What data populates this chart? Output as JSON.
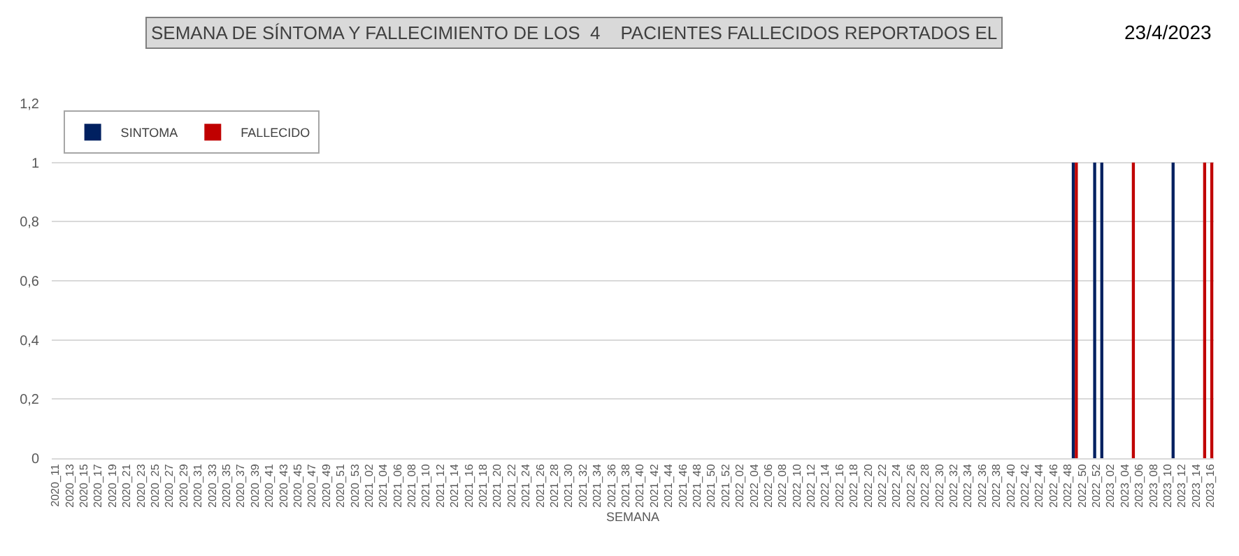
{
  "chart_data": {
    "type": "bar",
    "title": "SEMANA DE SÍNTOMA Y FALLECIMIENTO DE LOS  4    PACIENTES FALLECIDOS REPORTADOS EL",
    "subtitle": "23/4/2023",
    "xlabel": "SEMANA",
    "categories": [
      "2020_11",
      null,
      "2020_13",
      null,
      "2020_15",
      null,
      "2020_17",
      null,
      "2020_19",
      null,
      "2020_21",
      null,
      "2020_23",
      null,
      "2020_25",
      null,
      "2020_27",
      null,
      "2020_29",
      null,
      "2020_31",
      null,
      "2020_33",
      null,
      "2020_35",
      null,
      "2020_37",
      null,
      "2020_39",
      null,
      "2020_41",
      null,
      "2020_43",
      null,
      "2020_45",
      null,
      "2020_47",
      null,
      "2020_49",
      null,
      "2020_51",
      null,
      "2020_53",
      null,
      "2021_02",
      null,
      "2021_04",
      null,
      "2021_06",
      null,
      "2021_08",
      null,
      "2021_10",
      null,
      "2021_12",
      null,
      "2021_14",
      null,
      "2021_16",
      null,
      "2021_18",
      null,
      "2021_20",
      null,
      "2021_22",
      null,
      "2021_24",
      null,
      "2021_26",
      null,
      "2021_28",
      null,
      "2021_30",
      null,
      "2021_32",
      null,
      "2021_34",
      null,
      "2021_36",
      null,
      "2021_38",
      null,
      "2021_40",
      null,
      "2021_42",
      null,
      "2021_44",
      null,
      "2021_46",
      null,
      "2021_48",
      null,
      "2021_50",
      null,
      "2021_52",
      null,
      "2022_02",
      null,
      "2022_04",
      null,
      "2022_06",
      null,
      "2022_08",
      null,
      "2022_10",
      null,
      "2022_12",
      null,
      "2022_14",
      null,
      "2022_16",
      null,
      "2022_18",
      null,
      "2022_20",
      null,
      "2022_22",
      null,
      "2022_24",
      null,
      "2022_26",
      null,
      "2022_28",
      null,
      "2022_30",
      null,
      "2022_32",
      null,
      "2022_34",
      null,
      "2022_36",
      null,
      "2022_38",
      null,
      "2022_40",
      null,
      "2022_42",
      null,
      "2022_44",
      null,
      "2022_46",
      null,
      "2022_48",
      null,
      "2022_50",
      null,
      "2022_52",
      null,
      "2023_02",
      null,
      "2023_04",
      null,
      "2023_06",
      null,
      "2023_08",
      null,
      "2023_10",
      null,
      "2023_12",
      null,
      "2023_14",
      null,
      "2023_16"
    ],
    "series": [
      {
        "name": "SINTOMA",
        "color": "#002060",
        "values": [
          null,
          null,
          null,
          null,
          null,
          null,
          null,
          null,
          null,
          null,
          null,
          null,
          null,
          null,
          null,
          null,
          null,
          null,
          null,
          null,
          null,
          null,
          null,
          null,
          null,
          null,
          null,
          null,
          null,
          null,
          null,
          null,
          null,
          null,
          null,
          null,
          null,
          null,
          null,
          null,
          null,
          null,
          null,
          null,
          null,
          null,
          null,
          null,
          null,
          null,
          null,
          null,
          null,
          null,
          null,
          null,
          null,
          null,
          null,
          null,
          null,
          null,
          null,
          null,
          null,
          null,
          null,
          null,
          null,
          null,
          null,
          null,
          null,
          null,
          null,
          null,
          null,
          null,
          null,
          null,
          null,
          null,
          null,
          null,
          null,
          null,
          null,
          null,
          null,
          null,
          null,
          null,
          null,
          null,
          null,
          null,
          null,
          null,
          null,
          null,
          null,
          null,
          null,
          null,
          null,
          null,
          null,
          null,
          null,
          null,
          null,
          null,
          null,
          null,
          null,
          null,
          null,
          null,
          null,
          null,
          null,
          null,
          null,
          null,
          null,
          null,
          null,
          null,
          null,
          null,
          null,
          null,
          null,
          null,
          null,
          null,
          null,
          null,
          null,
          null,
          null,
          null,
          null,
          1,
          null,
          null,
          1,
          1,
          null,
          null,
          null,
          null,
          null,
          null,
          null,
          null,
          null,
          1,
          null,
          null,
          null,
          null,
          null
        ]
      },
      {
        "name": "FALLECIDO",
        "color": "#c00000",
        "values": [
          null,
          null,
          null,
          null,
          null,
          null,
          null,
          null,
          null,
          null,
          null,
          null,
          null,
          null,
          null,
          null,
          null,
          null,
          null,
          null,
          null,
          null,
          null,
          null,
          null,
          null,
          null,
          null,
          null,
          null,
          null,
          null,
          null,
          null,
          null,
          null,
          null,
          null,
          null,
          null,
          null,
          null,
          null,
          null,
          null,
          null,
          null,
          null,
          null,
          null,
          null,
          null,
          null,
          null,
          null,
          null,
          null,
          null,
          null,
          null,
          null,
          null,
          null,
          null,
          null,
          null,
          null,
          null,
          null,
          null,
          null,
          null,
          null,
          null,
          null,
          null,
          null,
          null,
          null,
          null,
          null,
          null,
          null,
          null,
          null,
          null,
          null,
          null,
          null,
          null,
          null,
          null,
          null,
          null,
          null,
          null,
          null,
          null,
          null,
          null,
          null,
          null,
          null,
          null,
          null,
          null,
          null,
          null,
          null,
          null,
          null,
          null,
          null,
          null,
          null,
          null,
          null,
          null,
          null,
          null,
          null,
          null,
          null,
          null,
          null,
          null,
          null,
          null,
          null,
          null,
          null,
          null,
          null,
          null,
          null,
          null,
          null,
          null,
          null,
          null,
          null,
          null,
          null,
          1,
          null,
          null,
          null,
          null,
          null,
          null,
          null,
          1,
          null,
          null,
          null,
          null,
          null,
          null,
          null,
          null,
          null,
          1,
          1
        ]
      }
    ],
    "ylim": [
      0,
      1.2
    ],
    "yticks": [
      0,
      {
        "value": 0.2,
        "label": "0,2"
      },
      {
        "value": 0.4,
        "label": "0,4"
      },
      {
        "value": 0.6,
        "label": "0,6"
      },
      {
        "value": 0.8,
        "label": "0,8"
      },
      1,
      {
        "value": 1.2,
        "label": "1,2"
      }
    ],
    "grid": "y",
    "legend": "top left"
  }
}
